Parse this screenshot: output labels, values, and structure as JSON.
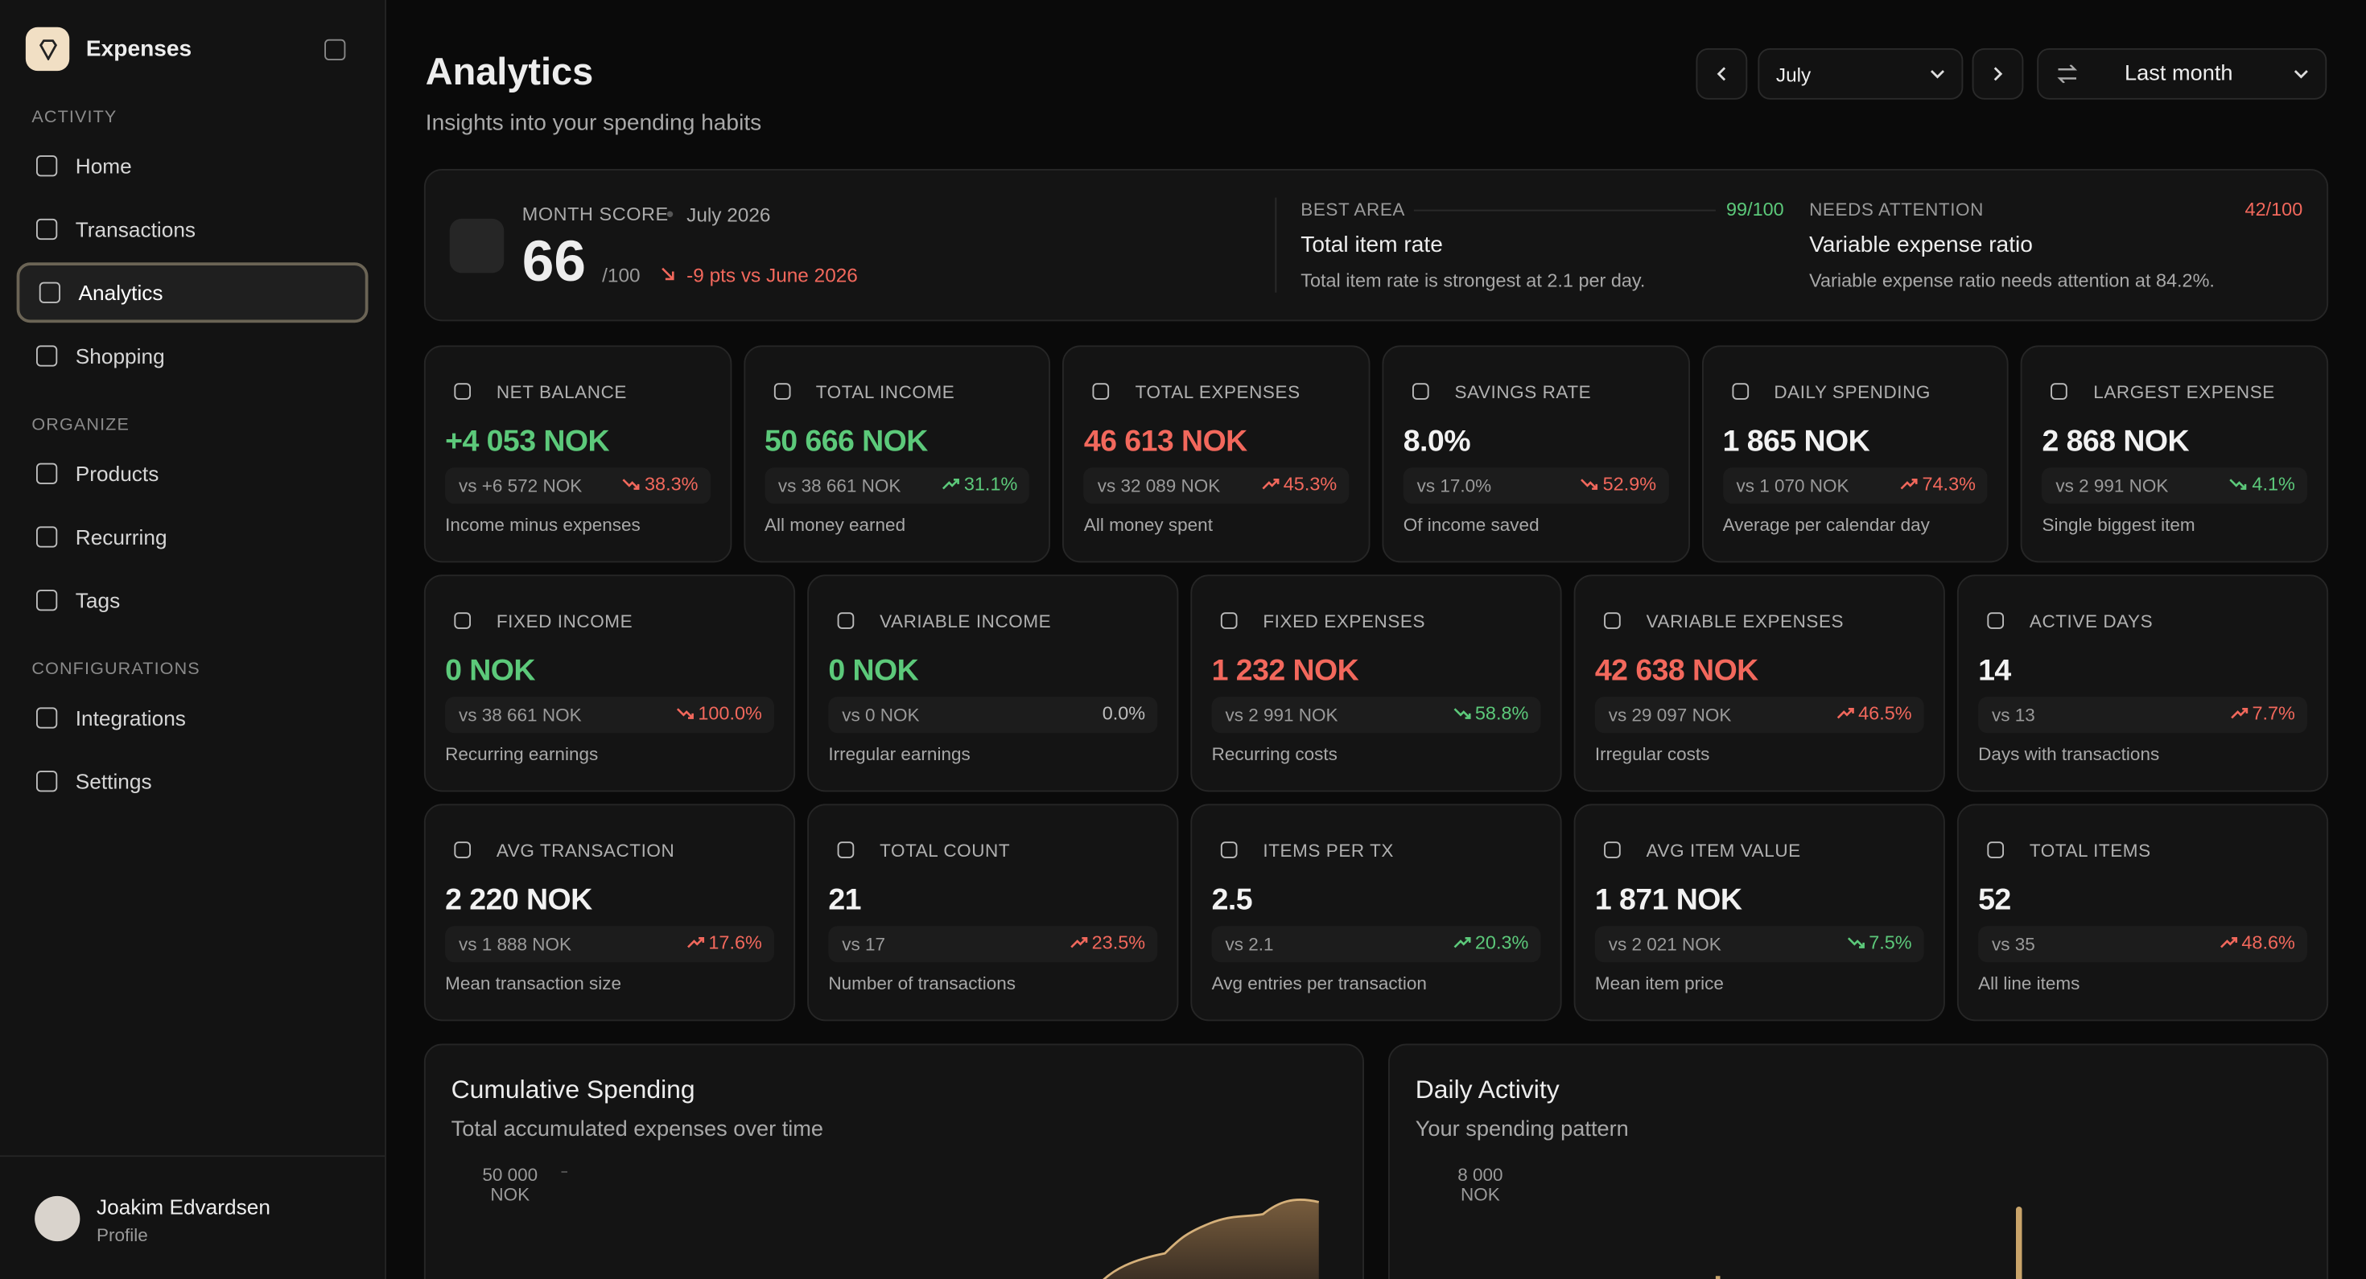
{
  "sidebar": {
    "app_name": "Expenses",
    "sections": [
      {
        "title": "ACTIVITY",
        "items": [
          "Home",
          "Transactions",
          "Analytics",
          "Shopping"
        ]
      },
      {
        "title": "ORGANIZE",
        "items": [
          "Products",
          "Recurring",
          "Tags"
        ]
      },
      {
        "title": "CONFIGURATIONS",
        "items": [
          "Integrations",
          "Settings"
        ]
      }
    ],
    "active_item": "Analytics",
    "user": {
      "name": "Joakim Edvardsen",
      "role": "Profile"
    }
  },
  "header": {
    "title": "Analytics",
    "subtitle": "Insights into your spending habits",
    "month": "July",
    "period": "Last month"
  },
  "score": {
    "label": "MONTH SCORE",
    "date": "July 2026",
    "value": "66",
    "max": "/100",
    "delta": "-9 pts vs June 2026",
    "best": {
      "label": "BEST AREA",
      "score": "99/100",
      "title": "Total item rate",
      "description": "Total item rate is strongest at 2.1 per day."
    },
    "attention": {
      "label": "NEEDS ATTENTION",
      "score": "42/100",
      "title": "Variable expense ratio",
      "description": "Variable expense ratio needs attention at 84.2%."
    }
  },
  "metric_rows": [
    [
      {
        "label": "NET BALANCE",
        "value": "+4 053 NOK",
        "value_color": "green",
        "compare": "vs +6 572 NOK",
        "change": "38.3%",
        "change_color": "red",
        "direction": "down",
        "note": "Income minus expenses"
      },
      {
        "label": "TOTAL INCOME",
        "value": "50 666 NOK",
        "value_color": "green",
        "compare": "vs 38 661 NOK",
        "change": "31.1%",
        "change_color": "green",
        "direction": "up",
        "note": "All money earned"
      },
      {
        "label": "TOTAL EXPENSES",
        "value": "46 613 NOK",
        "value_color": "red",
        "compare": "vs 32 089 NOK",
        "change": "45.3%",
        "change_color": "red",
        "direction": "up",
        "note": "All money spent"
      },
      {
        "label": "SAVINGS RATE",
        "value": "8.0%",
        "value_color": "white",
        "compare": "vs 17.0%",
        "change": "52.9%",
        "change_color": "red",
        "direction": "down",
        "note": "Of income saved"
      },
      {
        "label": "DAILY SPENDING",
        "value": "1 865 NOK",
        "value_color": "white",
        "compare": "vs 1 070 NOK",
        "change": "74.3%",
        "change_color": "red",
        "direction": "up",
        "note": "Average per calendar day"
      },
      {
        "label": "LARGEST EXPENSE",
        "value": "2 868 NOK",
        "value_color": "white",
        "compare": "vs 2 991 NOK",
        "change": "4.1%",
        "change_color": "green",
        "direction": "down",
        "note": "Single biggest item"
      }
    ],
    [
      {
        "label": "FIXED INCOME",
        "value": "0 NOK",
        "value_color": "green",
        "compare": "vs 38 661 NOK",
        "change": "100.0%",
        "change_color": "red",
        "direction": "down",
        "note": "Recurring earnings"
      },
      {
        "label": "VARIABLE INCOME",
        "value": "0 NOK",
        "value_color": "green",
        "compare": "vs 0 NOK",
        "change": "0.0%",
        "change_color": "neutral",
        "direction": "none",
        "note": "Irregular earnings"
      },
      {
        "label": "FIXED EXPENSES",
        "value": "1 232 NOK",
        "value_color": "red",
        "compare": "vs 2 991 NOK",
        "change": "58.8%",
        "change_color": "green",
        "direction": "down",
        "note": "Recurring costs"
      },
      {
        "label": "VARIABLE EXPENSES",
        "value": "42 638 NOK",
        "value_color": "red",
        "compare": "vs 29 097 NOK",
        "change": "46.5%",
        "change_color": "red",
        "direction": "up",
        "note": "Irregular costs"
      },
      {
        "label": "ACTIVE DAYS",
        "value": "14",
        "value_color": "white",
        "compare": "vs 13",
        "change": "7.7%",
        "change_color": "red",
        "direction": "up",
        "note": "Days with transactions"
      }
    ],
    [
      {
        "label": "AVG TRANSACTION",
        "value": "2 220 NOK",
        "value_color": "white",
        "compare": "vs 1 888 NOK",
        "change": "17.6%",
        "change_color": "red",
        "direction": "up",
        "note": "Mean transaction size"
      },
      {
        "label": "TOTAL COUNT",
        "value": "21",
        "value_color": "white",
        "compare": "vs 17",
        "change": "23.5%",
        "change_color": "red",
        "direction": "up",
        "note": "Number of transactions"
      },
      {
        "label": "ITEMS PER TX",
        "value": "2.5",
        "value_color": "white",
        "compare": "vs 2.1",
        "change": "20.3%",
        "change_color": "green",
        "direction": "up",
        "note": "Avg entries per transaction"
      },
      {
        "label": "AVG ITEM VALUE",
        "value": "1 871 NOK",
        "value_color": "white",
        "compare": "vs 2 021 NOK",
        "change": "7.5%",
        "change_color": "green",
        "direction": "down",
        "note": "Mean item price"
      },
      {
        "label": "TOTAL ITEMS",
        "value": "52",
        "value_color": "white",
        "compare": "vs 35",
        "change": "48.6%",
        "change_color": "red",
        "direction": "up",
        "note": "All line items"
      }
    ]
  ],
  "charts": [
    {
      "title": "Cumulative Spending",
      "subtitle": "Total accumulated expenses over time",
      "top_tick": "50 000 NOK"
    },
    {
      "title": "Daily Activity",
      "subtitle": "Your spending pattern",
      "top_tick": "8 000 NOK"
    }
  ]
}
